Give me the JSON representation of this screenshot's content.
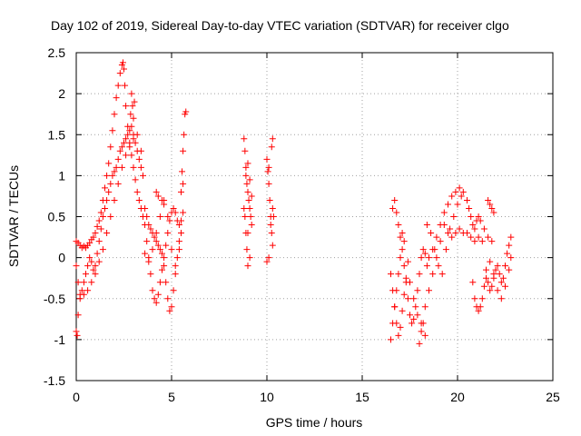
{
  "chart_data": {
    "type": "scatter",
    "title": "Day 102 of 2019, Sidereal Day-to-day VTEC variation (SDTVAR) for receiver clgo",
    "xlabel": "GPS time / hours",
    "ylabel": "SDTVAR / TECUs",
    "xlim": [
      0,
      25
    ],
    "ylim": [
      -1.5,
      2.5
    ],
    "xticks": [
      "0",
      "5",
      "10",
      "15",
      "20",
      "25"
    ],
    "yticks": [
      "2.5",
      "2",
      "1.5",
      "1",
      "0.5",
      "0",
      "-0.5",
      "-1",
      "-1.5"
    ],
    "grid": true,
    "marker": "plus",
    "color": "#ff0000",
    "series": [
      {
        "name": "SDTVAR",
        "points": [
          [
            0.0,
            0.2
          ],
          [
            0.1,
            0.18
          ],
          [
            0.2,
            0.15
          ],
          [
            0.3,
            0.12
          ],
          [
            0.4,
            0.14
          ],
          [
            0.5,
            0.12
          ],
          [
            0.6,
            0.15
          ],
          [
            0.7,
            0.18
          ],
          [
            0.8,
            0.22
          ],
          [
            0.9,
            0.25
          ],
          [
            1.0,
            0.3
          ],
          [
            1.1,
            0.38
          ],
          [
            1.2,
            0.45
          ],
          [
            1.3,
            0.55
          ],
          [
            1.4,
            0.7
          ],
          [
            1.5,
            0.85
          ],
          [
            1.6,
            1.0
          ],
          [
            1.7,
            1.15
          ],
          [
            1.8,
            1.35
          ],
          [
            1.9,
            1.55
          ],
          [
            2.0,
            1.75
          ],
          [
            2.1,
            1.95
          ],
          [
            2.2,
            2.1
          ],
          [
            2.3,
            2.25
          ],
          [
            2.4,
            2.35
          ],
          [
            2.45,
            2.38
          ],
          [
            2.5,
            2.3
          ],
          [
            2.55,
            2.1
          ],
          [
            2.6,
            1.85
          ],
          [
            2.7,
            1.6
          ],
          [
            2.8,
            1.4
          ],
          [
            2.9,
            1.25
          ],
          [
            3.0,
            1.1
          ],
          [
            3.1,
            0.95
          ],
          [
            3.2,
            0.8
          ],
          [
            3.3,
            0.7
          ],
          [
            3.4,
            0.6
          ],
          [
            3.5,
            0.5
          ],
          [
            0.0,
            -0.1
          ],
          [
            0.1,
            -0.3
          ],
          [
            0.2,
            -0.45
          ],
          [
            0.3,
            -0.4
          ],
          [
            0.4,
            -0.3
          ],
          [
            0.5,
            -0.2
          ],
          [
            0.6,
            -0.1
          ],
          [
            0.7,
            0.0
          ],
          [
            0.8,
            -0.05
          ],
          [
            0.9,
            -0.15
          ],
          [
            1.0,
            -0.1
          ],
          [
            1.1,
            0.05
          ],
          [
            1.2,
            0.2
          ],
          [
            1.3,
            0.35
          ],
          [
            1.4,
            0.5
          ],
          [
            1.5,
            0.6
          ],
          [
            1.6,
            0.7
          ],
          [
            1.7,
            0.8
          ],
          [
            1.8,
            0.9
          ],
          [
            1.9,
            1.0
          ],
          [
            2.0,
            1.05
          ],
          [
            2.1,
            1.1
          ],
          [
            2.2,
            1.2
          ],
          [
            2.3,
            1.3
          ],
          [
            2.4,
            1.35
          ],
          [
            2.5,
            1.4
          ],
          [
            2.6,
            1.45
          ],
          [
            2.7,
            1.5
          ],
          [
            2.8,
            1.55
          ],
          [
            2.9,
            1.6
          ],
          [
            3.0,
            1.5
          ],
          [
            3.1,
            1.4
          ],
          [
            3.2,
            1.3
          ],
          [
            3.3,
            1.2
          ],
          [
            3.4,
            1.1
          ],
          [
            3.5,
            1.0
          ],
          [
            0.0,
            -0.9
          ],
          [
            0.05,
            -0.95
          ],
          [
            0.1,
            -0.7
          ],
          [
            0.2,
            -0.5
          ],
          [
            0.4,
            -0.45
          ],
          [
            0.6,
            -0.4
          ],
          [
            0.8,
            -0.3
          ],
          [
            1.0,
            -0.2
          ],
          [
            1.2,
            -0.05
          ],
          [
            1.4,
            0.1
          ],
          [
            1.6,
            0.3
          ],
          [
            1.8,
            0.5
          ],
          [
            2.0,
            0.7
          ],
          [
            2.2,
            0.9
          ],
          [
            2.4,
            1.1
          ],
          [
            2.6,
            1.25
          ],
          [
            2.8,
            1.35
          ],
          [
            3.0,
            1.45
          ],
          [
            3.2,
            1.5
          ],
          [
            3.4,
            1.3
          ],
          [
            2.9,
            2.0
          ],
          [
            2.95,
            1.85
          ],
          [
            3.0,
            1.7
          ],
          [
            3.05,
            1.9
          ],
          [
            2.85,
            1.75
          ],
          [
            3.6,
            0.4
          ],
          [
            3.7,
            0.2
          ],
          [
            3.8,
            0.0
          ],
          [
            3.9,
            -0.2
          ],
          [
            4.0,
            -0.4
          ],
          [
            4.1,
            -0.5
          ],
          [
            4.2,
            -0.55
          ],
          [
            4.3,
            -0.45
          ],
          [
            4.4,
            -0.3
          ],
          [
            4.5,
            -0.15
          ],
          [
            4.6,
            0.0
          ],
          [
            4.7,
            0.15
          ],
          [
            4.8,
            0.3
          ],
          [
            4.9,
            0.45
          ],
          [
            5.0,
            0.55
          ],
          [
            5.1,
            0.6
          ],
          [
            5.2,
            0.55
          ],
          [
            5.3,
            0.45
          ],
          [
            5.4,
            0.4
          ],
          [
            5.5,
            0.45
          ],
          [
            5.6,
            0.55
          ],
          [
            3.6,
            0.6
          ],
          [
            3.7,
            0.5
          ],
          [
            3.8,
            0.4
          ],
          [
            3.9,
            0.35
          ],
          [
            4.0,
            0.3
          ],
          [
            4.1,
            0.25
          ],
          [
            4.2,
            0.2
          ],
          [
            4.3,
            0.15
          ],
          [
            4.4,
            0.1
          ],
          [
            4.5,
            0.05
          ],
          [
            4.6,
            -0.1
          ],
          [
            4.7,
            -0.3
          ],
          [
            4.8,
            -0.5
          ],
          [
            4.9,
            -0.65
          ],
          [
            5.0,
            -0.6
          ],
          [
            5.1,
            -0.4
          ],
          [
            5.2,
            -0.2
          ],
          [
            5.3,
            0.0
          ],
          [
            5.4,
            0.2
          ],
          [
            5.5,
            0.3
          ],
          [
            3.6,
            0.05
          ],
          [
            3.8,
            -0.05
          ],
          [
            4.0,
            0.1
          ],
          [
            4.2,
            0.3
          ],
          [
            4.4,
            0.5
          ],
          [
            4.6,
            0.7
          ],
          [
            4.8,
            0.5
          ],
          [
            5.0,
            0.1
          ],
          [
            5.2,
            -0.1
          ],
          [
            5.4,
            0.1
          ],
          [
            4.2,
            0.8
          ],
          [
            4.3,
            0.75
          ],
          [
            4.5,
            0.7
          ],
          [
            4.6,
            0.65
          ],
          [
            5.55,
            1.05
          ],
          [
            5.6,
            1.3
          ],
          [
            5.65,
            1.5
          ],
          [
            5.7,
            1.75
          ],
          [
            5.75,
            1.78
          ],
          [
            5.5,
            0.8
          ],
          [
            5.6,
            0.9
          ],
          [
            8.8,
            1.45
          ],
          [
            8.85,
            1.3
          ],
          [
            8.9,
            1.1
          ],
          [
            8.95,
            0.9
          ],
          [
            9.0,
            0.8
          ],
          [
            9.05,
            0.7
          ],
          [
            9.1,
            0.6
          ],
          [
            9.15,
            0.5
          ],
          [
            9.2,
            0.4
          ],
          [
            9.0,
            0.3
          ],
          [
            8.8,
            0.6
          ],
          [
            8.85,
            0.5
          ],
          [
            8.9,
            0.3
          ],
          [
            8.95,
            0.1
          ],
          [
            9.0,
            -0.1
          ],
          [
            9.1,
            0.0
          ],
          [
            8.9,
            1.0
          ],
          [
            9.0,
            1.15
          ],
          [
            9.1,
            0.95
          ],
          [
            9.2,
            0.75
          ],
          [
            10.0,
            1.2
          ],
          [
            10.05,
            1.05
          ],
          [
            10.1,
            0.9
          ],
          [
            10.15,
            0.7
          ],
          [
            10.2,
            0.5
          ],
          [
            10.25,
            0.3
          ],
          [
            10.3,
            0.15
          ],
          [
            10.1,
            0.0
          ],
          [
            10.0,
            -0.05
          ],
          [
            10.2,
            0.4
          ],
          [
            10.25,
            1.35
          ],
          [
            10.3,
            1.45
          ],
          [
            10.1,
            1.1
          ],
          [
            10.3,
            0.6
          ],
          [
            10.35,
            0.5
          ],
          [
            16.5,
            -1.0
          ],
          [
            16.6,
            -0.8
          ],
          [
            16.7,
            -0.6
          ],
          [
            16.8,
            -0.4
          ],
          [
            16.9,
            -0.2
          ],
          [
            17.0,
            0.0
          ],
          [
            17.1,
            0.1
          ],
          [
            17.2,
            -0.1
          ],
          [
            17.3,
            -0.3
          ],
          [
            17.4,
            -0.5
          ],
          [
            17.5,
            -0.7
          ],
          [
            17.6,
            -0.8
          ],
          [
            17.7,
            -0.75
          ],
          [
            17.8,
            -0.6
          ],
          [
            17.9,
            -0.4
          ],
          [
            18.0,
            -0.2
          ],
          [
            18.1,
            0.0
          ],
          [
            18.2,
            0.1
          ],
          [
            18.3,
            0.05
          ],
          [
            18.4,
            -0.1
          ],
          [
            16.5,
            -0.2
          ],
          [
            16.6,
            -0.4
          ],
          [
            16.7,
            -0.6
          ],
          [
            16.8,
            -0.8
          ],
          [
            16.9,
            -0.95
          ],
          [
            17.0,
            -0.85
          ],
          [
            17.1,
            -0.65
          ],
          [
            17.2,
            -0.45
          ],
          [
            17.3,
            -0.25
          ],
          [
            17.4,
            -0.05
          ],
          [
            16.6,
            0.6
          ],
          [
            16.7,
            0.7
          ],
          [
            16.8,
            0.55
          ],
          [
            16.9,
            0.4
          ],
          [
            17.0,
            0.25
          ],
          [
            17.1,
            0.3
          ],
          [
            17.2,
            0.2
          ],
          [
            17.5,
            -0.3
          ],
          [
            17.7,
            -0.5
          ],
          [
            17.9,
            -0.7
          ],
          [
            18.1,
            -0.8
          ],
          [
            18.3,
            -0.6
          ],
          [
            18.5,
            -0.4
          ],
          [
            18.7,
            -0.2
          ],
          [
            18.9,
            0.0
          ],
          [
            19.1,
            0.2
          ],
          [
            19.3,
            0.4
          ],
          [
            18.0,
            -1.05
          ],
          [
            18.1,
            -0.9
          ],
          [
            18.2,
            -0.8
          ],
          [
            18.3,
            -0.95
          ],
          [
            18.4,
            0.4
          ],
          [
            18.6,
            0.3
          ],
          [
            18.8,
            0.1
          ],
          [
            19.0,
            -0.1
          ],
          [
            19.2,
            -0.2
          ],
          [
            19.4,
            0.1
          ],
          [
            19.6,
            0.35
          ],
          [
            19.8,
            0.5
          ],
          [
            20.0,
            0.65
          ],
          [
            20.2,
            0.75
          ],
          [
            18.5,
            0.0
          ],
          [
            18.7,
            0.1
          ],
          [
            18.9,
            0.25
          ],
          [
            19.1,
            0.4
          ],
          [
            19.3,
            0.55
          ],
          [
            19.5,
            0.65
          ],
          [
            19.7,
            0.75
          ],
          [
            19.9,
            0.8
          ],
          [
            20.1,
            0.85
          ],
          [
            20.3,
            0.8
          ],
          [
            19.5,
            0.3
          ],
          [
            19.7,
            0.25
          ],
          [
            19.9,
            0.3
          ],
          [
            20.1,
            0.35
          ],
          [
            20.3,
            0.3
          ],
          [
            20.5,
            0.3
          ],
          [
            20.7,
            0.25
          ],
          [
            20.9,
            0.2
          ],
          [
            21.1,
            0.25
          ],
          [
            21.3,
            0.2
          ],
          [
            20.5,
            0.7
          ],
          [
            20.6,
            0.6
          ],
          [
            20.7,
            0.5
          ],
          [
            20.8,
            0.4
          ],
          [
            20.9,
            0.35
          ],
          [
            21.0,
            0.45
          ],
          [
            21.1,
            0.5
          ],
          [
            21.2,
            0.45
          ],
          [
            21.4,
            0.35
          ],
          [
            21.6,
            0.25
          ],
          [
            21.8,
            0.2
          ],
          [
            20.8,
            -0.3
          ],
          [
            20.9,
            -0.5
          ],
          [
            21.0,
            -0.6
          ],
          [
            21.1,
            -0.65
          ],
          [
            21.2,
            -0.6
          ],
          [
            21.3,
            -0.5
          ],
          [
            21.4,
            -0.35
          ],
          [
            21.5,
            -0.25
          ],
          [
            21.6,
            -0.3
          ],
          [
            21.7,
            -0.4
          ],
          [
            21.8,
            -0.35
          ],
          [
            21.9,
            -0.25
          ],
          [
            22.0,
            -0.15
          ],
          [
            22.1,
            -0.1
          ],
          [
            22.2,
            -0.2
          ],
          [
            22.3,
            -0.3
          ],
          [
            22.4,
            -0.25
          ],
          [
            22.5,
            -0.1
          ],
          [
            22.6,
            0.05
          ],
          [
            22.7,
            0.15
          ],
          [
            22.8,
            0.25
          ],
          [
            21.5,
            -0.15
          ],
          [
            21.7,
            -0.05
          ],
          [
            21.9,
            -0.2
          ],
          [
            22.1,
            -0.4
          ],
          [
            22.3,
            -0.5
          ],
          [
            22.5,
            -0.35
          ],
          [
            22.7,
            -0.15
          ],
          [
            22.8,
            0.0
          ],
          [
            21.6,
            0.7
          ],
          [
            21.7,
            0.65
          ],
          [
            21.8,
            0.6
          ],
          [
            21.9,
            0.55
          ]
        ]
      }
    ]
  }
}
